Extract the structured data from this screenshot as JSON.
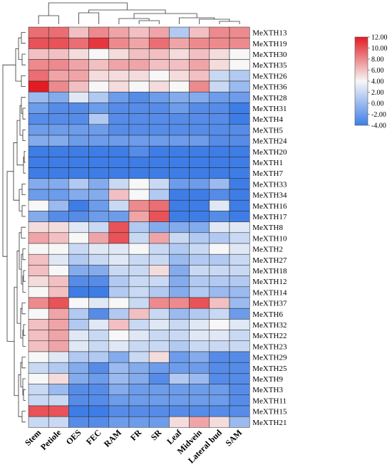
{
  "chart_data": {
    "type": "heatmap",
    "title": "",
    "xlabel": "",
    "ylabel": "",
    "columns": [
      "Stem",
      "Petiole",
      "OES",
      "FEC",
      "RAM",
      "FR",
      "SR",
      "Leaf",
      "Midvein",
      "Lateral bud",
      "SAM"
    ],
    "rows": [
      "MeXTH13",
      "MeXTH19",
      "MeXTH30",
      "MeXTH35",
      "MeXTH26",
      "MeXTH36",
      "MeXTH28",
      "MeXTH31",
      "MeXTH4",
      "MeXTH5",
      "MeXTH24",
      "MeXTH20",
      "MeXTH1",
      "MeXTH7",
      "MeXTH33",
      "MeXTH34",
      "MeXTH16",
      "MeXTH17",
      "MeXTH8",
      "MeXTH10",
      "MeXTH2",
      "MeXTH27",
      "MeXTH18",
      "MeXTH12",
      "MeXTH14",
      "MeXTH37",
      "MeXTH6",
      "MeXTH32",
      "MeXTH22",
      "MeXTH23",
      "MeXTH29",
      "MeXTH25",
      "MeXTH9",
      "MeXTH3",
      "MeXTH11",
      "MeXTH15",
      "MeXTH21"
    ],
    "values": [
      [
        9,
        9,
        6,
        8,
        7,
        6,
        7,
        1,
        6,
        8,
        8
      ],
      [
        10,
        10,
        9,
        11,
        8,
        7,
        9,
        7,
        8,
        8,
        8
      ],
      [
        6,
        6,
        5,
        4,
        5,
        6,
        6,
        5,
        6,
        5,
        4
      ],
      [
        8,
        8,
        7,
        6,
        7,
        7,
        6,
        6,
        7,
        5,
        4
      ],
      [
        9,
        7,
        7,
        5,
        5,
        5,
        4,
        5,
        6,
        2,
        1
      ],
      [
        12,
        8,
        6,
        4,
        5,
        4,
        5,
        4,
        8,
        2,
        0
      ],
      [
        0,
        -1,
        3,
        1,
        -2,
        -3,
        -2,
        -1,
        -1,
        -2,
        -2
      ],
      [
        -2,
        -3,
        -3,
        -2,
        -3,
        -3,
        -3,
        -2,
        -3,
        -3,
        -4
      ],
      [
        -3,
        -3,
        -3,
        1,
        -3,
        -3,
        -3,
        -3,
        -3,
        -3,
        -4
      ],
      [
        -2,
        -2,
        -2,
        -2,
        -3,
        -3,
        -3,
        -3,
        -3,
        -3,
        -3
      ],
      [
        -1,
        -1,
        -2,
        -2,
        -2,
        -2,
        -2,
        -2,
        -2,
        -3,
        -3
      ],
      [
        -4,
        -4,
        -4,
        -4,
        -4,
        -3,
        -4,
        -4,
        -4,
        -4,
        -4
      ],
      [
        -4,
        -4,
        -4,
        -4,
        -4,
        -4,
        -4,
        -4,
        -4,
        -4,
        -4
      ],
      [
        -4,
        -4,
        -4,
        -4,
        -4,
        -4,
        -4,
        -4,
        -4,
        -4,
        -4
      ],
      [
        -1,
        -1,
        1,
        -1,
        2,
        4,
        2,
        -2,
        -2,
        0,
        -4
      ],
      [
        -2,
        -2,
        -1,
        -1,
        6,
        4,
        1,
        -4,
        -4,
        -3,
        -4
      ],
      [
        4,
        0,
        -4,
        -2,
        2,
        8,
        9,
        -4,
        -4,
        3,
        -4
      ],
      [
        -1,
        -3,
        -3,
        -2,
        -2,
        7,
        10,
        -4,
        -4,
        -3,
        -4
      ],
      [
        5,
        5,
        3,
        2,
        10,
        1,
        -1,
        -1,
        -1,
        3,
        3
      ],
      [
        7,
        6,
        4,
        7,
        10,
        2,
        7,
        2,
        1,
        1,
        2
      ],
      [
        4,
        4,
        2,
        3,
        3,
        4,
        2,
        1,
        2,
        4,
        3
      ],
      [
        6,
        3,
        1,
        2,
        3,
        2,
        2,
        0,
        1,
        1,
        2
      ],
      [
        6,
        4,
        -1,
        -1,
        2,
        2,
        5,
        -1,
        2,
        2,
        2
      ],
      [
        5,
        6,
        -3,
        -3,
        1,
        2,
        2,
        -1,
        1,
        1,
        1
      ],
      [
        4,
        6,
        -4,
        -4,
        1,
        2,
        1,
        -1,
        1,
        0,
        0
      ],
      [
        8,
        10,
        4,
        3,
        4,
        2,
        8,
        8,
        10,
        6,
        0
      ],
      [
        4,
        7,
        1,
        -3,
        1,
        6,
        2,
        0,
        1,
        2,
        -2
      ],
      [
        6,
        7,
        1,
        3,
        6,
        2,
        3,
        2,
        3,
        4,
        3
      ],
      [
        6,
        7,
        3,
        2,
        4,
        3,
        2,
        2,
        3,
        3,
        2
      ],
      [
        6,
        7,
        3,
        2,
        3,
        2,
        2,
        1,
        2,
        2,
        2
      ],
      [
        4,
        3,
        1,
        1,
        -1,
        2,
        5,
        -2,
        -1,
        -3,
        -3
      ],
      [
        2,
        1,
        -1,
        -3,
        0,
        -1,
        -2,
        -2,
        -2,
        -3,
        -3
      ],
      [
        4,
        5,
        -1,
        -2,
        0,
        -1,
        -3,
        1,
        0,
        -3,
        -3
      ],
      [
        2,
        0,
        -3,
        -3,
        -1,
        -2,
        -2,
        -2,
        -2,
        -2,
        -3
      ],
      [
        2,
        2,
        -3,
        -3,
        -2,
        -2,
        -2,
        -2,
        -2,
        -2,
        -3
      ],
      [
        10,
        10,
        -4,
        -4,
        -3,
        -3,
        -3,
        -3,
        -3,
        -3,
        -3
      ],
      [
        2,
        2,
        -3,
        -3,
        -2,
        -2,
        -2,
        5,
        7,
        5,
        0
      ]
    ],
    "colorbar": {
      "range": [
        -4,
        12
      ],
      "ticks": [
        "12.00",
        "10.00",
        "8.00",
        "6.00",
        "4.00",
        "2.00",
        "0.00",
        "-2.00",
        "-4.00"
      ],
      "colors": {
        "low": "#3f7de6",
        "mid": "#f7f7f7",
        "high": "#e21c23"
      }
    }
  }
}
